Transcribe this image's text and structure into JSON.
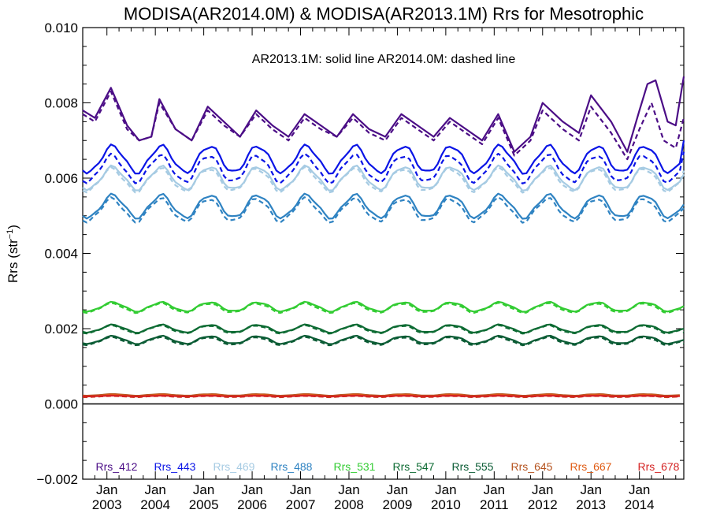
{
  "chart_data": {
    "type": "line",
    "title": "MODISA(AR2014.0M) & MODISA(AR2013.1M)  Rrs for Mesotrophic",
    "subtitle": "AR2013.1M: solid line   AR2014.0M: dashed line",
    "ylabel": "Rrs (str⁻¹)",
    "xlabel": "",
    "ylim": [
      -0.002,
      0.01
    ],
    "yticks": [
      "−0.002",
      "0.000",
      "0.002",
      "0.004",
      "0.006",
      "0.008",
      "0.010"
    ],
    "xrange": [
      "2002-07",
      "2014-12"
    ],
    "xticks": [
      {
        "month": "Jan",
        "year": "2003"
      },
      {
        "month": "Jan",
        "year": "2004"
      },
      {
        "month": "Jan",
        "year": "2005"
      },
      {
        "month": "Jan",
        "year": "2006"
      },
      {
        "month": "Jan",
        "year": "2007"
      },
      {
        "month": "Jan",
        "year": "2008"
      },
      {
        "month": "Jan",
        "year": "2009"
      },
      {
        "month": "Jan",
        "year": "2010"
      },
      {
        "month": "Jan",
        "year": "2011"
      },
      {
        "month": "Jan",
        "year": "2012"
      },
      {
        "month": "Jan",
        "year": "2013"
      },
      {
        "month": "Jan",
        "year": "2014"
      }
    ],
    "zero_line": 0.0,
    "legend_position": "bottom",
    "line_styles": {
      "AR2013.1M": "solid",
      "AR2014.0M": "dashed"
    },
    "series": [
      {
        "name": "Rrs_412",
        "color": "#4b0d86",
        "anchors": [
          [
            "2002-07",
            0.0078
          ],
          [
            "2002-10",
            0.0076
          ],
          [
            "2003-02",
            0.0084
          ],
          [
            "2003-06",
            0.0074
          ],
          [
            "2003-09",
            0.007
          ],
          [
            "2003-12",
            0.0071
          ],
          [
            "2004-02",
            0.0081
          ],
          [
            "2004-06",
            0.0073
          ],
          [
            "2004-10",
            0.007
          ],
          [
            "2005-02",
            0.0079
          ],
          [
            "2005-06",
            0.0075
          ],
          [
            "2005-10",
            0.0071
          ],
          [
            "2006-02",
            0.0078
          ],
          [
            "2006-06",
            0.0074
          ],
          [
            "2006-10",
            0.0071
          ],
          [
            "2007-02",
            0.0077
          ],
          [
            "2007-06",
            0.0074
          ],
          [
            "2007-10",
            0.0071
          ],
          [
            "2008-02",
            0.0077
          ],
          [
            "2008-06",
            0.0073
          ],
          [
            "2008-10",
            0.0071
          ],
          [
            "2009-02",
            0.0077
          ],
          [
            "2009-06",
            0.0074
          ],
          [
            "2009-10",
            0.0071
          ],
          [
            "2010-02",
            0.0076
          ],
          [
            "2010-06",
            0.0073
          ],
          [
            "2010-10",
            0.007
          ],
          [
            "2011-02",
            0.0077
          ],
          [
            "2011-06",
            0.0067
          ],
          [
            "2011-10",
            0.0071
          ],
          [
            "2012-01",
            0.008
          ],
          [
            "2012-06",
            0.0075
          ],
          [
            "2012-10",
            0.0072
          ],
          [
            "2013-01",
            0.0082
          ],
          [
            "2013-06",
            0.0075
          ],
          [
            "2013-10",
            0.0067
          ],
          [
            "2014-01",
            0.0078
          ],
          [
            "2014-03",
            0.0085
          ],
          [
            "2014-05",
            0.0086
          ],
          [
            "2014-08",
            0.0075
          ],
          [
            "2014-10",
            0.0074
          ],
          [
            "2014-12",
            0.0087
          ]
        ],
        "anchors_dashed": [
          [
            "2002-07",
            0.0077
          ],
          [
            "2002-10",
            0.0075
          ],
          [
            "2003-02",
            0.0083
          ],
          [
            "2003-06",
            0.0073
          ],
          [
            "2003-09",
            0.007
          ],
          [
            "2003-12",
            0.0071
          ],
          [
            "2004-02",
            0.008
          ],
          [
            "2004-06",
            0.0073
          ],
          [
            "2004-10",
            0.007
          ],
          [
            "2005-02",
            0.0078
          ],
          [
            "2005-06",
            0.0074
          ],
          [
            "2005-10",
            0.0071
          ],
          [
            "2006-02",
            0.0077
          ],
          [
            "2006-06",
            0.0073
          ],
          [
            "2006-10",
            0.007
          ],
          [
            "2007-02",
            0.0076
          ],
          [
            "2007-06",
            0.0073
          ],
          [
            "2007-10",
            0.0071
          ],
          [
            "2008-02",
            0.0076
          ],
          [
            "2008-06",
            0.0072
          ],
          [
            "2008-10",
            0.007
          ],
          [
            "2009-02",
            0.0076
          ],
          [
            "2009-06",
            0.0073
          ],
          [
            "2009-10",
            0.007
          ],
          [
            "2010-02",
            0.0075
          ],
          [
            "2010-06",
            0.0072
          ],
          [
            "2010-10",
            0.0069
          ],
          [
            "2011-02",
            0.0076
          ],
          [
            "2011-06",
            0.0066
          ],
          [
            "2011-10",
            0.007
          ],
          [
            "2012-01",
            0.0078
          ],
          [
            "2012-06",
            0.0073
          ],
          [
            "2012-10",
            0.007
          ],
          [
            "2013-01",
            0.0079
          ],
          [
            "2013-06",
            0.0072
          ],
          [
            "2013-10",
            0.0065
          ],
          [
            "2014-01",
            0.0073
          ],
          [
            "2014-04",
            0.008
          ],
          [
            "2014-07",
            0.007
          ],
          [
            "2014-10",
            0.0068
          ],
          [
            "2014-12",
            0.0076
          ]
        ]
      },
      {
        "name": "Rrs_443",
        "color": "#0a14e6",
        "amp": 0.00035,
        "base_solid": 0.0065,
        "base_dashed": 0.00625,
        "tail_solid": [
          [
            "2014-12",
            0.007
          ]
        ],
        "tail_dashed": [
          [
            "2014-12",
            0.0067
          ]
        ]
      },
      {
        "name": "Rrs_469",
        "color": "#a6cbe3",
        "amp": 0.0003,
        "base_solid": 0.006,
        "base_dashed": 0.00595,
        "tail_solid": [
          [
            "2014-12",
            0.0061
          ]
        ],
        "tail_dashed": [
          [
            "2014-12",
            0.0062
          ]
        ]
      },
      {
        "name": "Rrs_488",
        "color": "#2f83c2",
        "amp": 0.0003,
        "base_solid": 0.00525,
        "base_dashed": 0.00515,
        "tail_solid": [
          [
            "2014-12",
            0.0053
          ]
        ],
        "tail_dashed": [
          [
            "2014-12",
            0.0052
          ]
        ]
      },
      {
        "name": "Rrs_531",
        "color": "#33cc33",
        "amp": 0.00012,
        "base_solid": 0.00258,
        "base_dashed": 0.00255,
        "tail_solid": [
          [
            "2014-12",
            0.0026
          ]
        ],
        "tail_dashed": [
          [
            "2014-12",
            0.0025
          ]
        ]
      },
      {
        "name": "Rrs_547",
        "color": "#0d6b33",
        "amp": 0.0001,
        "base_solid": 0.002,
        "base_dashed": 0.00198,
        "tail_solid": [
          [
            "2014-12",
            0.002
          ]
        ],
        "tail_dashed": [
          [
            "2014-12",
            0.0019
          ]
        ]
      },
      {
        "name": "Rrs_555",
        "color": "#0b5c35",
        "amp": 0.0001,
        "base_solid": 0.0017,
        "base_dashed": 0.00167,
        "tail_solid": [
          [
            "2014-12",
            0.0017
          ]
        ],
        "tail_dashed": [
          [
            "2014-12",
            0.0016
          ]
        ]
      },
      {
        "name": "Rrs_645",
        "color": "#b5531f",
        "amp": 2e-05,
        "base_solid": 0.00024,
        "base_dashed": 0.0002,
        "tail_solid": [],
        "tail_dashed": []
      },
      {
        "name": "Rrs_667",
        "color": "#e05c14",
        "amp": 2e-05,
        "base_solid": 0.00022,
        "base_dashed": 0.00021,
        "tail_solid": [],
        "tail_dashed": []
      },
      {
        "name": "Rrs_678",
        "color": "#d42323",
        "amp": 1e-05,
        "base_solid": 0.00021,
        "base_dashed": 0.0002,
        "tail_solid": [],
        "tail_dashed": []
      }
    ]
  }
}
